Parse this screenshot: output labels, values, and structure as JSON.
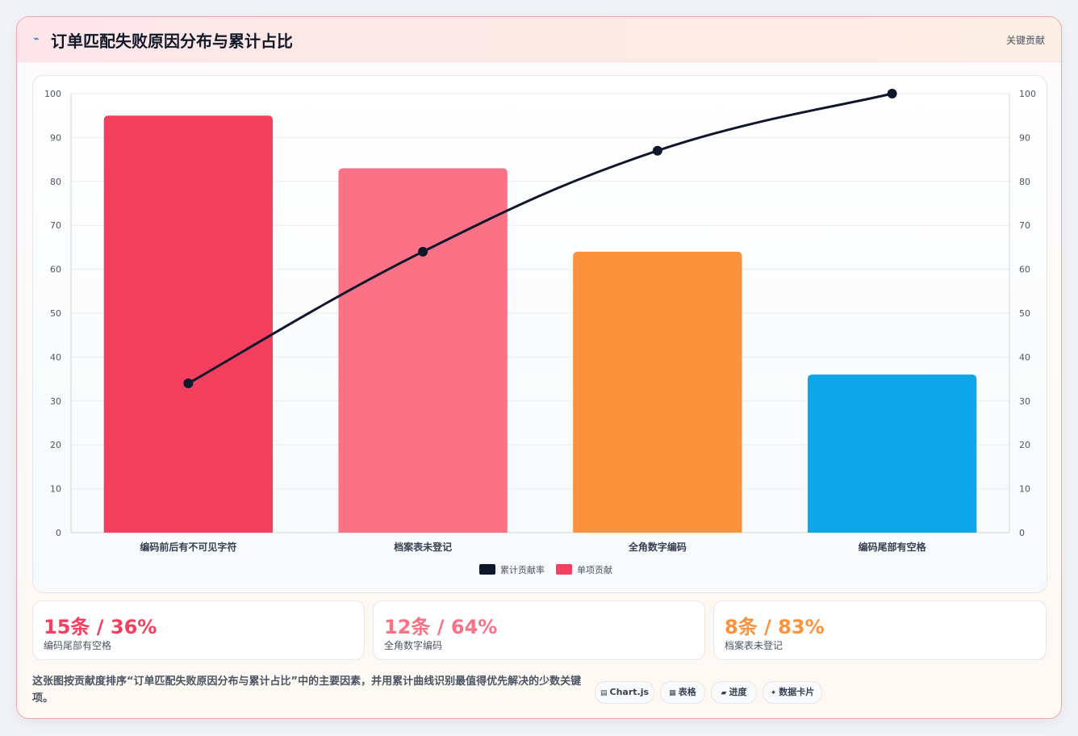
{
  "header": {
    "title": "订单匹配失败原因分布与累计占比",
    "tag": "关键贡献"
  },
  "chart_data": {
    "type": "bar",
    "categories": [
      "编码前后有不可见字符",
      "档案表未登记",
      "全角数字编码",
      "编码尾部有空格"
    ],
    "series": [
      {
        "name": "单项贡献",
        "type": "bar",
        "values": [
          95,
          83,
          64,
          36
        ],
        "colors": [
          "#f43f5e",
          "#fb7185",
          "#fb923c",
          "#0ea5e9"
        ]
      },
      {
        "name": "累计贡献率",
        "type": "line",
        "values": [
          34,
          64,
          87,
          100
        ],
        "color": "#0f172a"
      }
    ],
    "ylim": [
      0,
      100
    ],
    "y_ticks": [
      0,
      10,
      20,
      30,
      40,
      50,
      60,
      70,
      80,
      90,
      100
    ],
    "y2lim": [
      0,
      100
    ],
    "grid": true,
    "legend": [
      {
        "label": "累计贡献率",
        "color": "#0f172a"
      },
      {
        "label": "单项贡献",
        "color": "#f43f5e"
      }
    ],
    "legend_position": "bottom"
  },
  "stats": [
    {
      "value": "15条 / 36%",
      "label": "编码尾部有空格",
      "color": "#f43f5e"
    },
    {
      "value": "12条 / 64%",
      "label": "全角数字编码",
      "color": "#fb7185"
    },
    {
      "value": "8条 / 83%",
      "label": "档案表未登记",
      "color": "#fb923c"
    }
  ],
  "description": "这张图按贡献度排序“订单匹配失败原因分布与累计占比”中的主要因素，并用累计曲线识别最值得优先解决的少数关键项。",
  "chips": [
    {
      "icon": "▤",
      "label": "Chart.js"
    },
    {
      "icon": "▦",
      "label": "表格"
    },
    {
      "icon": "▰",
      "label": "进度"
    },
    {
      "icon": "✦",
      "label": "数据卡片"
    }
  ]
}
